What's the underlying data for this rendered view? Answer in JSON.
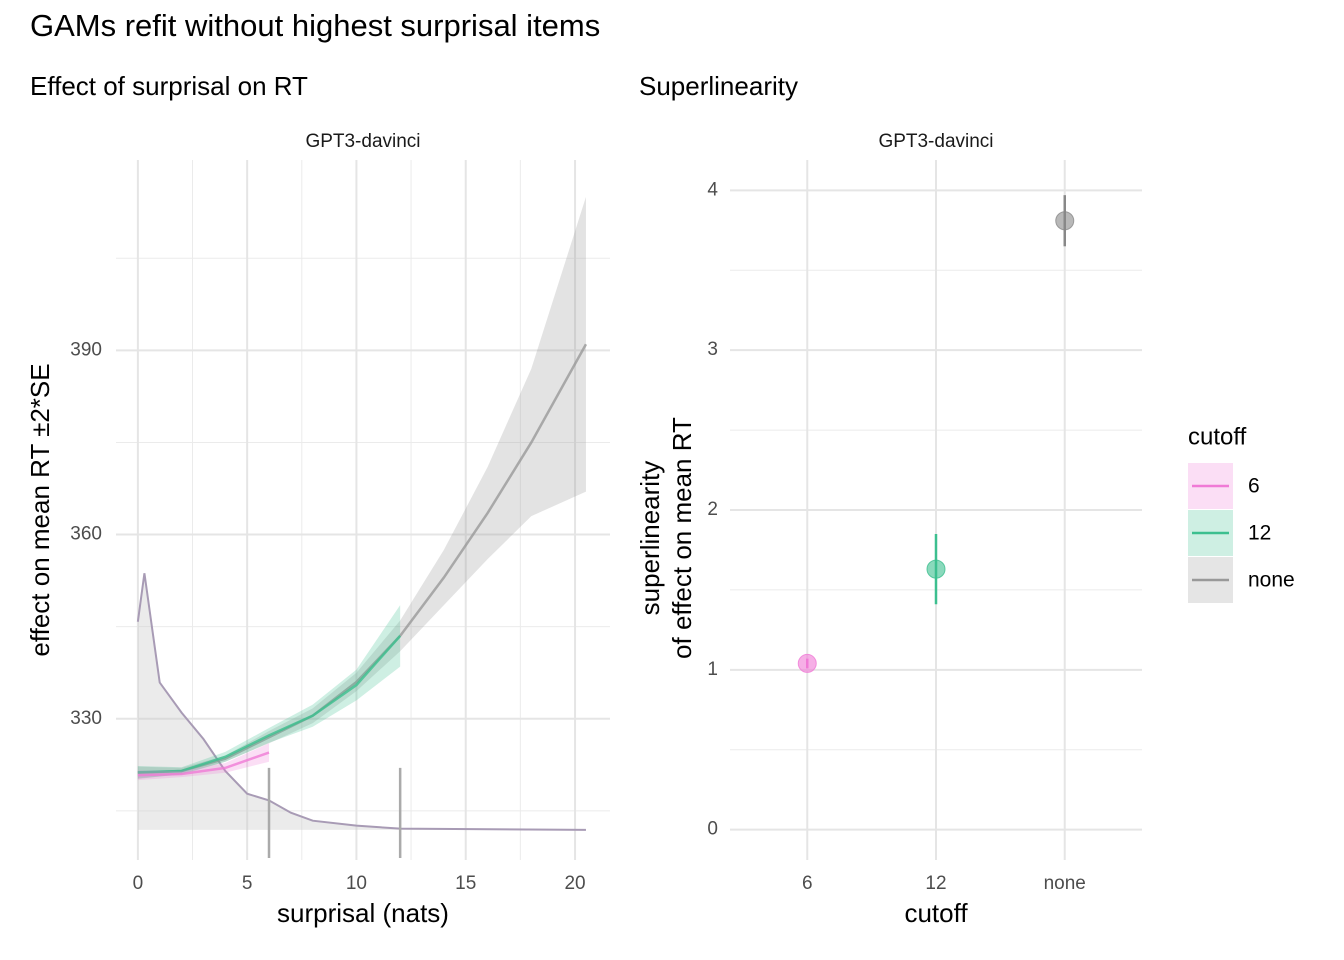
{
  "title": "GAMs refit without highest surprisal items",
  "chart_data": [
    {
      "type": "line",
      "title": "Effect of surprisal on RT",
      "strip": "GPT3-davinci",
      "xlabel": "surprisal (nats)",
      "ylabel": "effect on mean RT ±2*SE",
      "xlim": [
        -1,
        21.6
      ],
      "ylim": [
        307,
        421
      ],
      "xticks": [
        0,
        5,
        10,
        15,
        20
      ],
      "xminor": [
        2.5,
        7.5,
        12.5,
        17.5
      ],
      "yticks": [
        330,
        360,
        390
      ],
      "yminor": [
        315,
        345,
        375,
        405
      ],
      "grid": true,
      "legend_title": "cutoff",
      "legend": "right",
      "series": [
        {
          "name": "6",
          "color": "#f07ad6",
          "x": [
            0,
            2,
            4,
            6
          ],
          "values": [
            320.8,
            321,
            322,
            324.5
          ],
          "lower": [
            320,
            320.5,
            321.2,
            323
          ],
          "upper": [
            321.6,
            321.5,
            322.8,
            326
          ]
        },
        {
          "name": "12",
          "color": "#3cbf8f",
          "x": [
            0,
            2,
            4,
            6,
            8,
            10,
            12
          ],
          "values": [
            321.3,
            321.5,
            323.8,
            327.3,
            330.5,
            335.5,
            343.5
          ],
          "lower": [
            320.3,
            320.9,
            323,
            326.1,
            328.7,
            333,
            338.5
          ],
          "upper": [
            322.3,
            322.1,
            324.6,
            328.5,
            332.3,
            338,
            348.5
          ]
        },
        {
          "name": "none",
          "color": "#999999",
          "x": [
            0,
            2,
            4,
            6,
            8,
            10,
            12,
            14,
            16,
            18,
            20.5
          ],
          "values": [
            321.2,
            321.5,
            323.5,
            327,
            330.5,
            336,
            343.5,
            353,
            363.5,
            375,
            391
          ],
          "lower": [
            320.2,
            321,
            323,
            326,
            329.3,
            334.5,
            341,
            348.5,
            356,
            363,
            367
          ],
          "upper": [
            322.2,
            322,
            324,
            328,
            331.7,
            337.5,
            346,
            357.5,
            371,
            387,
            415
          ]
        }
      ],
      "density": {
        "color": "#a89bb5",
        "baseline": 311.9,
        "x": [
          0,
          0.3,
          1,
          2,
          3,
          4,
          5,
          6,
          7,
          8,
          10,
          12,
          20.5
        ],
        "values": [
          345.8,
          353.7,
          335.9,
          331,
          326.7,
          321.5,
          317.8,
          316.7,
          314.7,
          313.4,
          312.6,
          312.1,
          311.9
        ]
      },
      "vlines": {
        "x": [
          6,
          12
        ],
        "ymax": 322,
        "color": "#aaaaaa"
      }
    },
    {
      "type": "errorbar",
      "title": "Superlinearity",
      "strip": "GPT3-davinci",
      "xlabel": "cutoff",
      "ylabel": [
        "superlinearity",
        "of effect on mean RT"
      ],
      "categories": [
        "6",
        "12",
        "none"
      ],
      "values": [
        1.04,
        1.63,
        3.81
      ],
      "errors": [
        0.03,
        0.22,
        0.16
      ],
      "colors": [
        "#f07ad6",
        "#3cbf8f",
        "#888888"
      ],
      "ylim": [
        -0.19,
        4.19
      ],
      "yticks": [
        0,
        1,
        2,
        3,
        4
      ],
      "yminor": [
        0.5,
        1.5,
        2.5,
        3.5
      ],
      "grid": true
    }
  ]
}
